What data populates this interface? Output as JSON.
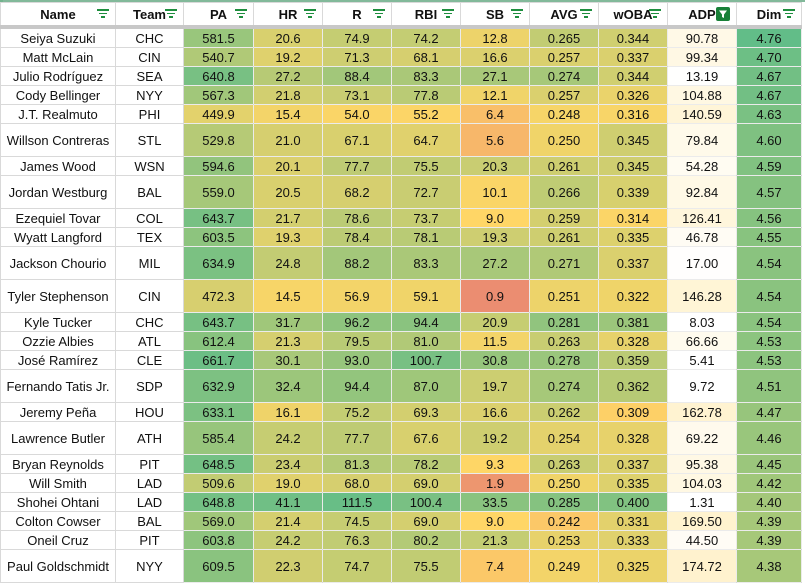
{
  "columns": [
    {
      "key": "name",
      "label": "Name",
      "filter_active": false
    },
    {
      "key": "team",
      "label": "Team",
      "filter_active": false
    },
    {
      "key": "pa",
      "label": "PA",
      "filter_active": false
    },
    {
      "key": "hr",
      "label": "HR",
      "filter_active": false
    },
    {
      "key": "r",
      "label": "R",
      "filter_active": false
    },
    {
      "key": "rbi",
      "label": "RBI",
      "filter_active": false
    },
    {
      "key": "sb",
      "label": "SB",
      "filter_active": false
    },
    {
      "key": "avg",
      "label": "AVG",
      "filter_active": false
    },
    {
      "key": "woba",
      "label": "wOBA",
      "filter_active": false
    },
    {
      "key": "adp",
      "label": "ADP",
      "filter_active": true
    },
    {
      "key": "dim",
      "label": "Dim",
      "filter_active": false
    }
  ],
  "rows": [
    [
      "Seiya Suzuki",
      "CHC",
      "581.5",
      "20.6",
      "74.9",
      "74.2",
      "12.8",
      "0.265",
      "0.344",
      "90.78",
      "4.76"
    ],
    [
      "Matt McLain",
      "CIN",
      "540.7",
      "19.2",
      "71.3",
      "68.1",
      "16.6",
      "0.257",
      "0.337",
      "99.34",
      "4.70"
    ],
    [
      "Julio Rodríguez",
      "SEA",
      "640.8",
      "27.2",
      "88.4",
      "83.3",
      "27.1",
      "0.274",
      "0.344",
      "13.19",
      "4.67"
    ],
    [
      "Cody Bellinger",
      "NYY",
      "567.3",
      "21.8",
      "73.1",
      "77.8",
      "12.1",
      "0.257",
      "0.326",
      "104.88",
      "4.67"
    ],
    [
      "J.T. Realmuto",
      "PHI",
      "449.9",
      "15.4",
      "54.0",
      "55.2",
      "6.4",
      "0.248",
      "0.316",
      "140.59",
      "4.63"
    ],
    [
      "Willson Contreras",
      "STL",
      "529.8",
      "21.0",
      "67.1",
      "64.7",
      "5.6",
      "0.250",
      "0.345",
      "79.84",
      "4.60"
    ],
    [
      "James Wood",
      "WSN",
      "594.6",
      "20.1",
      "77.7",
      "75.5",
      "20.3",
      "0.261",
      "0.345",
      "54.28",
      "4.59"
    ],
    [
      "Jordan Westburg",
      "BAL",
      "559.0",
      "20.5",
      "68.2",
      "72.7",
      "10.1",
      "0.266",
      "0.339",
      "92.84",
      "4.57"
    ],
    [
      "Ezequiel Tovar",
      "COL",
      "643.7",
      "21.7",
      "78.6",
      "73.7",
      "9.0",
      "0.259",
      "0.314",
      "126.41",
      "4.56"
    ],
    [
      "Wyatt Langford",
      "TEX",
      "603.5",
      "19.3",
      "78.4",
      "78.1",
      "19.3",
      "0.261",
      "0.335",
      "46.78",
      "4.55"
    ],
    [
      "Jackson Chourio",
      "MIL",
      "634.9",
      "24.8",
      "88.2",
      "83.3",
      "27.2",
      "0.271",
      "0.337",
      "17.00",
      "4.54"
    ],
    [
      "Tyler Stephenson",
      "CIN",
      "472.3",
      "14.5",
      "56.9",
      "59.1",
      "0.9",
      "0.251",
      "0.322",
      "146.28",
      "4.54"
    ],
    [
      "Kyle Tucker",
      "CHC",
      "643.7",
      "31.7",
      "96.2",
      "94.4",
      "20.9",
      "0.281",
      "0.381",
      "8.03",
      "4.54"
    ],
    [
      "Ozzie Albies",
      "ATL",
      "612.4",
      "21.3",
      "79.5",
      "81.0",
      "11.5",
      "0.263",
      "0.328",
      "66.66",
      "4.53"
    ],
    [
      "José Ramírez",
      "CLE",
      "661.7",
      "30.1",
      "93.0",
      "100.7",
      "30.8",
      "0.278",
      "0.359",
      "5.41",
      "4.53"
    ],
    [
      "Fernando Tatis Jr.",
      "SDP",
      "632.9",
      "32.4",
      "94.4",
      "87.0",
      "19.7",
      "0.274",
      "0.362",
      "9.72",
      "4.51"
    ],
    [
      "Jeremy Peña",
      "HOU",
      "633.1",
      "16.1",
      "75.2",
      "69.3",
      "16.6",
      "0.262",
      "0.309",
      "162.78",
      "4.47"
    ],
    [
      "Lawrence Butler",
      "ATH",
      "585.4",
      "24.2",
      "77.7",
      "67.6",
      "19.2",
      "0.254",
      "0.328",
      "69.22",
      "4.46"
    ],
    [
      "Bryan Reynolds",
      "PIT",
      "648.5",
      "23.4",
      "81.3",
      "78.2",
      "9.3",
      "0.263",
      "0.337",
      "95.38",
      "4.45"
    ],
    [
      "Will Smith",
      "LAD",
      "509.6",
      "19.0",
      "68.0",
      "69.0",
      "1.9",
      "0.250",
      "0.335",
      "104.03",
      "4.42"
    ],
    [
      "Shohei Ohtani",
      "LAD",
      "648.8",
      "41.1",
      "111.5",
      "100.4",
      "33.5",
      "0.285",
      "0.400",
      "1.31",
      "4.40"
    ],
    [
      "Colton Cowser",
      "BAL",
      "569.0",
      "21.4",
      "74.5",
      "69.0",
      "9.0",
      "0.242",
      "0.331",
      "169.50",
      "4.39"
    ],
    [
      "Oneil Cruz",
      "PIT",
      "603.8",
      "24.2",
      "76.3",
      "80.2",
      "21.3",
      "0.253",
      "0.333",
      "44.50",
      "4.39"
    ],
    [
      "Paul Goldschmidt",
      "NYY",
      "609.5",
      "22.3",
      "74.7",
      "75.5",
      "7.4",
      "0.249",
      "0.325",
      "174.72",
      "4.38"
    ]
  ],
  "colors": {
    "red": "#e67c73",
    "yellow": "#ffd666",
    "green": "#57bb8a",
    "cream": "#fff2cc",
    "white": "#ffffff",
    "filter": "#188038"
  }
}
